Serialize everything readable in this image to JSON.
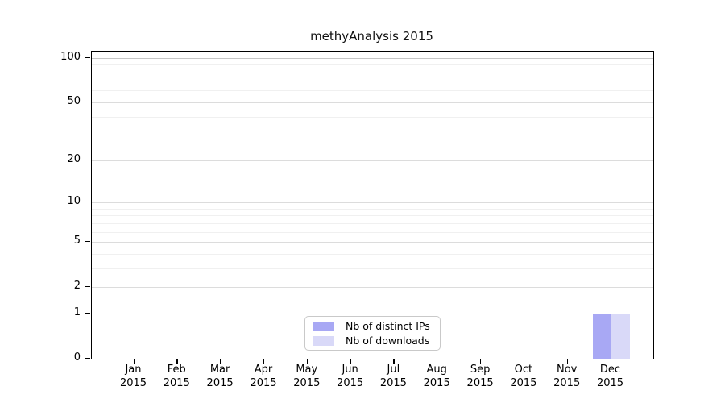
{
  "title": "methyAnalysis 2015",
  "chart_data": {
    "type": "bar",
    "title": "methyAnalysis 2015",
    "categories": [
      "Jan 2015",
      "Feb 2015",
      "Mar 2015",
      "Apr 2015",
      "May 2015",
      "Jun 2015",
      "Jul 2015",
      "Aug 2015",
      "Sep 2015",
      "Oct 2015",
      "Nov 2015",
      "Dec 2015"
    ],
    "series": [
      {
        "name": "Nb of distinct IPs",
        "color": "#a8a8f4",
        "values": [
          0,
          0,
          0,
          0,
          0,
          0,
          0,
          0,
          0,
          0,
          0,
          1
        ]
      },
      {
        "name": "Nb of downloads",
        "color": "#d9d9f8",
        "values": [
          0,
          0,
          0,
          0,
          0,
          0,
          0,
          0,
          0,
          0,
          0,
          1
        ]
      }
    ],
    "xlabel": "",
    "ylabel": "",
    "yaxis": {
      "scale": "log1p",
      "ticks": [
        0,
        1,
        2,
        5,
        10,
        20,
        50,
        100
      ],
      "minor_gridlines": [
        3,
        4,
        6,
        7,
        8,
        9,
        30,
        40,
        60,
        70,
        80,
        90
      ],
      "ylim": [
        0,
        110
      ]
    },
    "grid": true,
    "legend_position": "inside-bottom-center"
  },
  "colors": {
    "bar_distinct_ips": "#a8a8f4",
    "bar_downloads": "#d9d9f8",
    "gridline_top": "#c6c6c6",
    "gridline_major": "#dcdcdc",
    "gridline_minor": "#f0f0f0",
    "axis": "#000000",
    "legend_border": "#c9c9c9",
    "background": "#ffffff"
  }
}
